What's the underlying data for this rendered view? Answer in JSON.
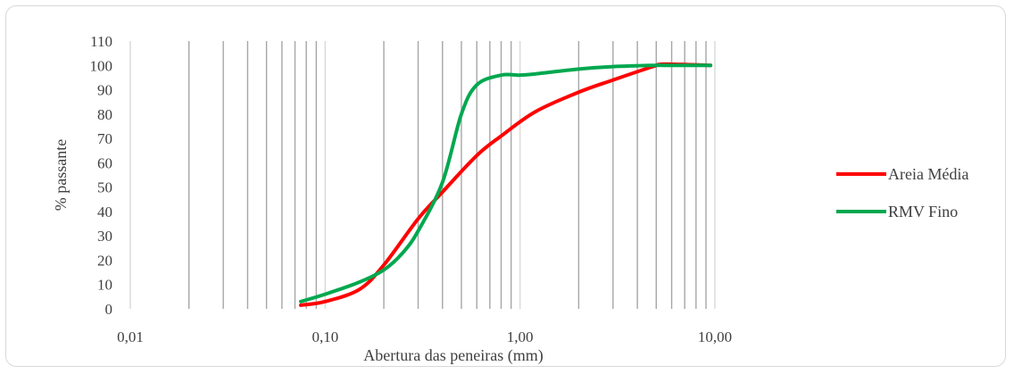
{
  "chart_data": {
    "type": "line",
    "title": "",
    "xlabel": "Abertura das peneiras (mm)",
    "ylabel": "% passante",
    "xscale": "log",
    "xlim": [
      0.01,
      10
    ],
    "ylim": [
      0,
      110
    ],
    "x_tick_labels": [
      "0,01",
      "0,10",
      "1,00",
      "10,00"
    ],
    "x_tick_values": [
      0.01,
      0.1,
      1,
      10
    ],
    "y_ticks": [
      0,
      10,
      20,
      30,
      40,
      50,
      60,
      70,
      80,
      90,
      100,
      110
    ],
    "grid": "vertical log gridlines",
    "legend_position": "right",
    "series": [
      {
        "name": "Areia Média",
        "color": "#ff0000",
        "x": [
          0.075,
          0.1,
          0.15,
          0.2,
          0.3,
          0.4,
          0.6,
          0.8,
          1.2,
          2.0,
          3.0,
          4.8,
          5.5,
          9.5
        ],
        "y": [
          1.5,
          3,
          8,
          18,
          37,
          48,
          63,
          71,
          81,
          89,
          94,
          99.5,
          100.5,
          100
        ]
      },
      {
        "name": "RMV Fino",
        "color": "#00a84f",
        "x": [
          0.075,
          0.1,
          0.15,
          0.2,
          0.25,
          0.3,
          0.4,
          0.5,
          0.6,
          0.8,
          1.0,
          1.2,
          2.0,
          3.0,
          4.8,
          6.0,
          9.5
        ],
        "y": [
          3,
          6,
          11,
          16,
          23,
          32,
          52,
          80,
          92,
          96,
          96,
          96.5,
          98.5,
          99.5,
          100,
          100,
          100
        ]
      }
    ]
  }
}
